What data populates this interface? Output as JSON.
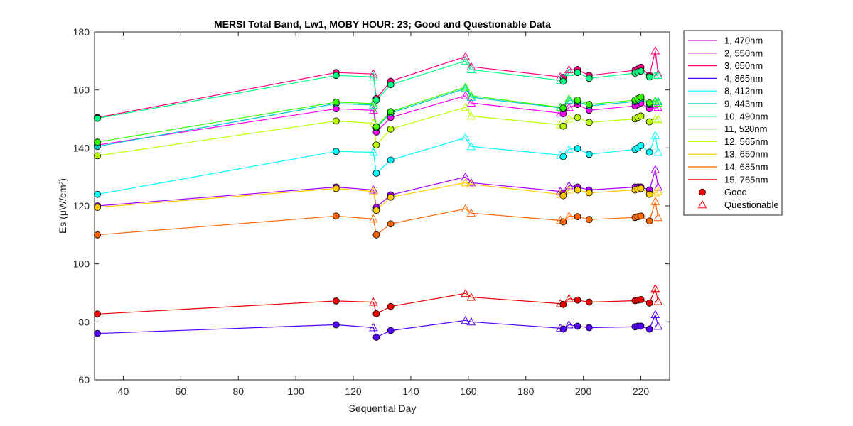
{
  "chart_data": {
    "type": "line",
    "title": "MERSI Total Band,  Lw1, MOBY HOUR: 23;  Good and Questionable Data",
    "xlabel": "Sequential Day",
    "ylabel": "Es (μW/cm²)",
    "xlim": [
      30,
      230
    ],
    "ylim": [
      60,
      180
    ],
    "xticks": [
      "40",
      "60",
      "80",
      "100",
      "120",
      "140",
      "160",
      "180",
      "200",
      "220"
    ],
    "xtick_values": [
      40,
      60,
      80,
      100,
      120,
      140,
      160,
      180,
      200,
      220
    ],
    "yticks": [
      "60",
      "80",
      "100",
      "120",
      "140",
      "160",
      "180"
    ],
    "ytick_values": [
      60,
      80,
      100,
      120,
      140,
      160,
      180
    ],
    "grid": false,
    "legend_position": "outside-right",
    "x": [
      31,
      114,
      127,
      128,
      133,
      159,
      161,
      192,
      193,
      195,
      198,
      202,
      218,
      219,
      220,
      223,
      225,
      226
    ],
    "series": [
      {
        "name": "1, 470nm",
        "color": "#ff00ff",
        "values": [
          141,
          153.5,
          153,
          145.5,
          150.5,
          158,
          155.5,
          152,
          151.8,
          154,
          155,
          153,
          154.5,
          155,
          155.5,
          153.5,
          153.8,
          154
        ],
        "quality": [
          "G",
          "G",
          "Q",
          "G",
          "G",
          "Q",
          "Q",
          "Q",
          "G",
          "Q",
          "G",
          "G",
          "G",
          "G",
          "G",
          "G",
          "Q",
          "Q"
        ]
      },
      {
        "name": "2, 550nm",
        "color": "#aa00ff",
        "values": [
          120,
          126.5,
          125.5,
          119.5,
          123.8,
          130,
          128,
          125,
          124.5,
          127,
          126.5,
          125.5,
          126.5,
          126.5,
          126.5,
          125.5,
          132.5,
          126.5
        ],
        "quality": [
          "G",
          "G",
          "Q",
          "G",
          "G",
          "Q",
          "Q",
          "Q",
          "G",
          "Q",
          "G",
          "G",
          "G",
          "G",
          "G",
          "G",
          "Q",
          "Q"
        ]
      },
      {
        "name": "3, 650nm",
        "color": "#ff0080",
        "values": [
          150.5,
          166,
          165.5,
          157,
          163,
          171.5,
          168,
          164.5,
          164.3,
          167,
          167,
          165,
          166.8,
          167.2,
          167.8,
          165,
          173.5,
          165.5
        ],
        "quality": [
          "G",
          "G",
          "Q",
          "G",
          "G",
          "Q",
          "Q",
          "Q",
          "G",
          "Q",
          "G",
          "G",
          "G",
          "G",
          "G",
          "G",
          "Q",
          "Q"
        ]
      },
      {
        "name": "4, 865nm",
        "color": "#5500ff",
        "values": [
          76,
          79,
          78,
          74.7,
          77,
          80.5,
          80,
          77.8,
          77.5,
          79,
          78.5,
          78,
          78.3,
          78.5,
          78.5,
          77.5,
          82.5,
          78.5
        ],
        "quality": [
          "G",
          "G",
          "Q",
          "G",
          "G",
          "Q",
          "Q",
          "Q",
          "G",
          "Q",
          "G",
          "G",
          "G",
          "G",
          "G",
          "G",
          "Q",
          "Q"
        ]
      },
      {
        "name": "8, 412nm",
        "color": "#00ffff",
        "values": [
          124,
          138.8,
          138.5,
          131.3,
          135.8,
          143.5,
          140.5,
          137.5,
          137,
          139.5,
          139.8,
          137.8,
          139.5,
          140,
          140.8,
          138.5,
          144.3,
          138.5
        ],
        "quality": [
          "G",
          "G",
          "Q",
          "G",
          "G",
          "Q",
          "Q",
          "Q",
          "G",
          "Q",
          "G",
          "G",
          "G",
          "G",
          "G",
          "G",
          "Q",
          "Q"
        ]
      },
      {
        "name": "9, 443nm",
        "color": "#00cccc",
        "values": [
          140.5,
          155.3,
          154.8,
          147,
          152,
          160.5,
          157.5,
          153.8,
          153.5,
          156.5,
          156,
          154.5,
          156,
          156.5,
          157,
          155,
          156,
          156
        ],
        "quality": [
          "G",
          "G",
          "Q",
          "G",
          "G",
          "Q",
          "Q",
          "Q",
          "G",
          "Q",
          "G",
          "G",
          "G",
          "G",
          "G",
          "G",
          "Q",
          "Q"
        ]
      },
      {
        "name": "10, 490nm",
        "color": "#00ff80",
        "values": [
          150.2,
          165,
          164.5,
          156.5,
          161.8,
          170,
          167,
          163.3,
          163,
          166,
          166,
          164,
          165.8,
          166.2,
          166.5,
          164.5,
          165,
          165
        ],
        "quality": [
          "G",
          "G",
          "Q",
          "G",
          "G",
          "Q",
          "Q",
          "Q",
          "G",
          "Q",
          "G",
          "G",
          "G",
          "G",
          "G",
          "G",
          "Q",
          "Q"
        ]
      },
      {
        "name": "11, 520nm",
        "color": "#33ff00",
        "values": [
          142,
          155.8,
          155.3,
          147.3,
          152.5,
          161,
          158,
          154,
          153.8,
          157,
          156.5,
          155,
          156.5,
          157,
          157.5,
          155.5,
          156.3,
          155.5
        ],
        "quality": [
          "G",
          "G",
          "Q",
          "G",
          "G",
          "Q",
          "Q",
          "Q",
          "G",
          "Q",
          "G",
          "G",
          "G",
          "G",
          "G",
          "G",
          "Q",
          "Q"
        ]
      },
      {
        "name": "12, 565nm",
        "color": "#bbff00",
        "values": [
          137.3,
          149.3,
          148.5,
          141,
          146.5,
          154,
          151,
          148,
          147.5,
          150,
          150.5,
          148.8,
          150,
          150.5,
          151,
          149,
          150,
          149.8
        ],
        "quality": [
          "G",
          "G",
          "Q",
          "G",
          "G",
          "Q",
          "Q",
          "Q",
          "G",
          "Q",
          "G",
          "G",
          "G",
          "G",
          "G",
          "G",
          "Q",
          "Q"
        ]
      },
      {
        "name": "13, 650nm",
        "color": "#ffcc00",
        "values": [
          119.5,
          126,
          125,
          118.5,
          123,
          128,
          127.5,
          124,
          123.5,
          125.5,
          125.5,
          124.5,
          125.5,
          125.8,
          126,
          124,
          124.5,
          125
        ],
        "quality": [
          "G",
          "G",
          "Q",
          "G",
          "G",
          "Q",
          "Q",
          "Q",
          "G",
          "Q",
          "G",
          "G",
          "G",
          "G",
          "G",
          "G",
          "Q",
          "Q"
        ]
      },
      {
        "name": "14, 685nm",
        "color": "#ff6600",
        "values": [
          110,
          116.5,
          115.5,
          110,
          113.8,
          119,
          117.5,
          115,
          114.5,
          116.5,
          116.3,
          115.3,
          116,
          116.3,
          116.5,
          114.8,
          121.5,
          116
        ],
        "quality": [
          "G",
          "G",
          "Q",
          "G",
          "G",
          "Q",
          "Q",
          "Q",
          "G",
          "Q",
          "G",
          "G",
          "G",
          "G",
          "G",
          "G",
          "Q",
          "Q"
        ]
      },
      {
        "name": "15, 765nm",
        "color": "#ee0000",
        "values": [
          82.7,
          87.2,
          86.8,
          82.8,
          85.3,
          89.8,
          88.5,
          86.3,
          86,
          88,
          87.5,
          86.8,
          87.3,
          87.5,
          87.7,
          86.5,
          91.5,
          87
        ],
        "quality": [
          "G",
          "G",
          "Q",
          "G",
          "G",
          "Q",
          "Q",
          "Q",
          "G",
          "Q",
          "G",
          "G",
          "G",
          "G",
          "G",
          "G",
          "Q",
          "Q"
        ]
      }
    ],
    "markers": [
      {
        "label": "Good",
        "shape": "circle",
        "color": "#ff0000"
      },
      {
        "label": "Questionable",
        "shape": "triangle",
        "color": "#ff0000"
      }
    ]
  }
}
